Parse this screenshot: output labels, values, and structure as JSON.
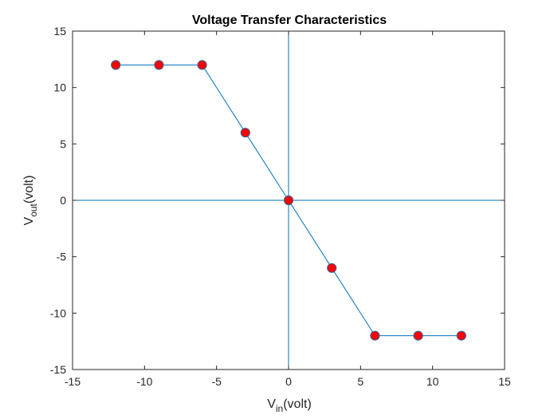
{
  "chart_data": {
    "type": "line",
    "title": "Voltage Transfer Characteristics",
    "xlabel": {
      "main": "V",
      "sub": "in",
      "rest": "(volt)"
    },
    "ylabel": {
      "main": "V",
      "sub": "out",
      "rest": "(volt)"
    },
    "xlim": [
      -15,
      15
    ],
    "ylim": [
      -15,
      15
    ],
    "xticks": [
      -15,
      -10,
      -5,
      0,
      5,
      10,
      15
    ],
    "yticks": [
      -15,
      -10,
      -5,
      0,
      5,
      10,
      15
    ],
    "grid": false,
    "reference_lines": {
      "x0": true,
      "y0": true
    },
    "series": [
      {
        "x": [
          -12,
          -9,
          -6,
          -3,
          0,
          3,
          6,
          9,
          12
        ],
        "y": [
          12,
          12,
          12,
          6,
          0,
          -6,
          -12,
          -12,
          -12
        ],
        "line_color": "#0072BD",
        "marker": "circle",
        "marker_fill": "#FF0000",
        "marker_edge": "#4A5A8C"
      }
    ]
  }
}
